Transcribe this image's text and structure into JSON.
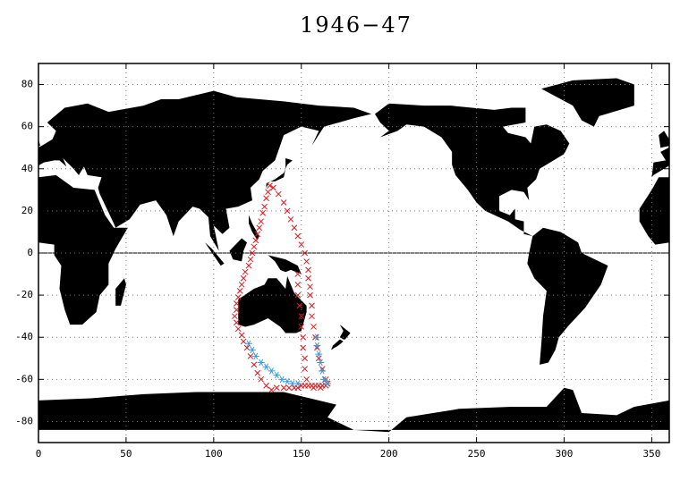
{
  "chart_data": {
    "type": "scatter",
    "title": "1946−47",
    "xlim": [
      0,
      360
    ],
    "ylim": [
      -90,
      90
    ],
    "xticks": [
      0,
      50,
      100,
      150,
      200,
      250,
      300,
      350
    ],
    "yticks": [
      -80,
      -60,
      -40,
      -20,
      0,
      20,
      40,
      60,
      80
    ],
    "grid": true,
    "series": [
      {
        "color": "#e8141a",
        "marker": "x",
        "x": [
          132,
          131,
          130,
          129,
          128,
          127,
          126,
          125,
          124,
          123,
          122,
          121,
          120,
          118,
          117,
          116,
          115,
          114,
          113,
          113,
          112,
          113,
          114,
          116,
          117,
          119,
          121,
          123,
          125,
          127,
          130,
          133,
          134,
          137,
          140,
          142,
          144,
          146,
          148,
          150,
          152,
          153,
          154,
          154,
          155,
          155,
          156,
          156,
          157,
          158,
          159,
          160,
          162,
          164,
          148,
          148,
          148,
          149,
          150,
          150,
          151,
          151,
          152,
          152,
          153,
          136,
          140,
          143,
          146,
          148,
          150,
          152,
          154,
          156,
          158,
          160,
          162,
          164,
          165,
          157,
          161
        ],
        "values": [
          32,
          29,
          26,
          22,
          19,
          15,
          12,
          9,
          6,
          3,
          0,
          -3,
          -6,
          -9,
          -12,
          -15,
          -18,
          -21,
          -24,
          -27,
          -30,
          -33,
          -36,
          -39,
          -42,
          -45,
          -49,
          -53,
          -57,
          -60,
          -63,
          -65,
          31,
          28,
          24,
          20,
          16,
          12,
          8,
          4,
          0,
          -4,
          -8,
          -12,
          -16,
          -20,
          -25,
          -30,
          -35,
          -40,
          -45,
          -50,
          -55,
          -60,
          -10,
          -15,
          -20,
          -25,
          -30,
          -35,
          -40,
          -45,
          -50,
          -55,
          -60,
          -64,
          -64,
          -64,
          -64,
          -64,
          -63,
          -63,
          -63,
          -63,
          -63,
          -63,
          -63,
          -63,
          -62,
          -64,
          -64
        ]
      },
      {
        "color": "#3a9ad9",
        "marker": "star",
        "x": [
          120,
          122,
          124,
          127,
          130,
          133,
          136,
          139,
          142,
          145,
          148,
          159,
          159,
          160,
          161,
          162,
          163,
          165
        ],
        "values": [
          -43,
          -46,
          -49,
          -52,
          -54,
          -56,
          -58,
          -60,
          -61,
          -62,
          -62,
          -40,
          -44,
          -48,
          -52,
          -56,
          -60,
          -62
        ]
      }
    ]
  }
}
